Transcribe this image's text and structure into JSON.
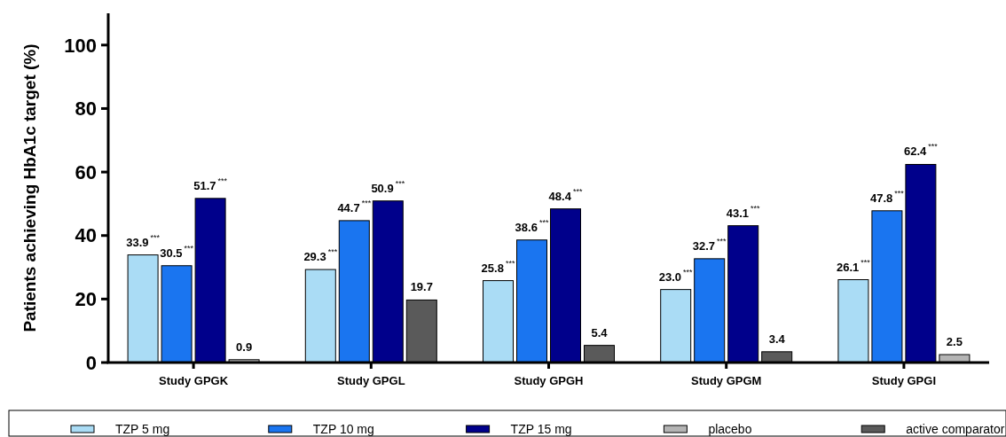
{
  "chart_data": {
    "type": "bar",
    "ylabel": "Patients achieving HbA1c target (%)",
    "categories": [
      "Study GPGK",
      "Study GPGL",
      "Study GPGH",
      "Study GPGM",
      "Study GPGI"
    ],
    "series": [
      {
        "name": "TZP 5 mg",
        "color": "#aadcf5",
        "values": [
          33.9,
          29.3,
          25.8,
          23.0,
          26.1
        ],
        "value_labels": [
          "33.9$^{***}$",
          "29.3$^{***}$",
          "25.8$^{***}$",
          "23.0$^{***}$",
          "26.1$^{***}$"
        ]
      },
      {
        "name": "TZP 10 mg",
        "color": "#1a75f0",
        "values": [
          30.5,
          44.7,
          38.6,
          32.7,
          47.8
        ],
        "value_labels": [
          "30.5$^{***}$",
          "44.7$^{***}$",
          "38.6$^{***}$",
          "32.7$^{***}$",
          "47.8$^{***}$"
        ]
      },
      {
        "name": "TZP 15 mg",
        "color": "#00008b",
        "values": [
          51.7,
          50.9,
          48.4,
          43.1,
          62.4
        ],
        "value_labels": [
          "51.7$^{***}$",
          "50.9$^{***}$",
          "48.4$^{***}$",
          "43.1$^{***}$",
          "62.4$^{***}$"
        ]
      },
      {
        "name": "placebo",
        "color": "#b4b4b4",
        "values": [
          0.9,
          null,
          null,
          null,
          2.5
        ],
        "value_labels": [
          "0.9",
          null,
          null,
          null,
          "2.5"
        ]
      },
      {
        "name": "active comparator",
        "color": "#5a5a5a",
        "values": [
          null,
          19.7,
          5.4,
          3.4,
          null
        ],
        "value_labels": [
          null,
          "19.7",
          "5.4",
          "3.4",
          null
        ]
      }
    ],
    "ylim": [
      0,
      110
    ],
    "yticks": [
      0,
      20,
      40,
      60,
      80,
      100
    ],
    "legend": "bottom"
  }
}
